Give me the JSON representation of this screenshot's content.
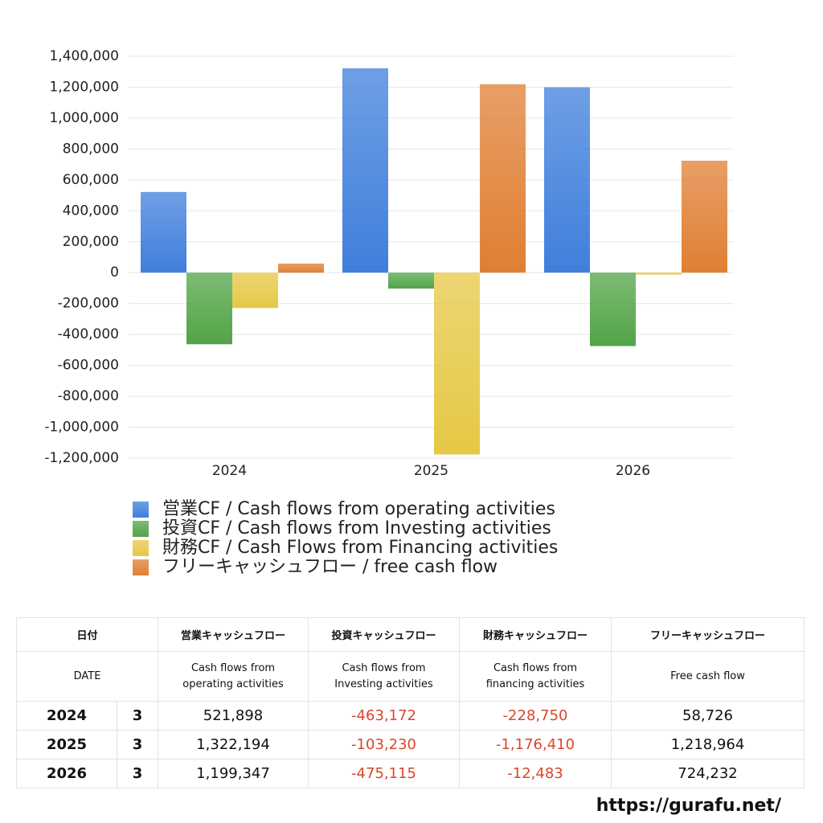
{
  "chart_data": {
    "type": "bar",
    "categories": [
      "2024",
      "2025",
      "2026"
    ],
    "series": [
      {
        "name": "営業CF / Cash flows from operating activities",
        "color": "#3f7fdc",
        "values": [
          521898,
          1322194,
          1199347
        ]
      },
      {
        "name": "投資CF / Cash flows from Investing activities",
        "color": "#52a447",
        "values": [
          -463172,
          -103230,
          -475115
        ]
      },
      {
        "name": "財務CF / Cash Flows from Financing activities",
        "color": "#e6c845",
        "values": [
          -228750,
          -1176410,
          -12483
        ]
      },
      {
        "name": "フリーキャッシュフロー / free cash flow",
        "color": "#e07f33",
        "values": [
          58726,
          1218964,
          724232
        ]
      }
    ],
    "ylim": [
      -1200000,
      1400000
    ],
    "yticks": [
      {
        "value": -1200000,
        "label": "-1,200,000"
      },
      {
        "value": -1000000,
        "label": "-1,000,000"
      },
      {
        "value": -800000,
        "label": "-800,000"
      },
      {
        "value": -600000,
        "label": "-600,000"
      },
      {
        "value": -400000,
        "label": "-400,000"
      },
      {
        "value": -200000,
        "label": "-200,000"
      },
      0,
      {
        "value": 200000,
        "label": "200,000"
      },
      {
        "value": 400000,
        "label": "400,000"
      },
      {
        "value": 600000,
        "label": "600,000"
      },
      {
        "value": 800000,
        "label": "800,000"
      },
      {
        "value": 1000000,
        "label": "1,000,000"
      },
      {
        "value": 1200000,
        "label": "1,200,000"
      },
      {
        "value": 1400000,
        "label": "1,400,000"
      }
    ],
    "grid": true,
    "legend": "bottom"
  },
  "table": {
    "header": [
      "日付",
      "営業キャッシュフロー",
      "投資キャッシュフロー",
      "財務キャッシュフロー",
      "フリーキャッシュフロー"
    ],
    "subheader": [
      [
        "DATE"
      ],
      [
        "Cash flows from",
        "operating activities"
      ],
      [
        "Cash flows from",
        "Investing activities"
      ],
      [
        "Cash flows from",
        "financing activities"
      ],
      [
        "Free cash flow"
      ]
    ],
    "rows": [
      [
        "2024",
        "3",
        "521,898",
        "-463,172",
        "-228,750",
        "58,726"
      ],
      [
        "2025",
        "3",
        "1,322,194",
        "-103,230",
        "-1,176,410",
        "1,218,964"
      ],
      [
        "2026",
        "3",
        "1,199,347",
        "-475,115",
        "-12,483",
        "724,232"
      ]
    ]
  },
  "footer": "https://gurafu.net/"
}
